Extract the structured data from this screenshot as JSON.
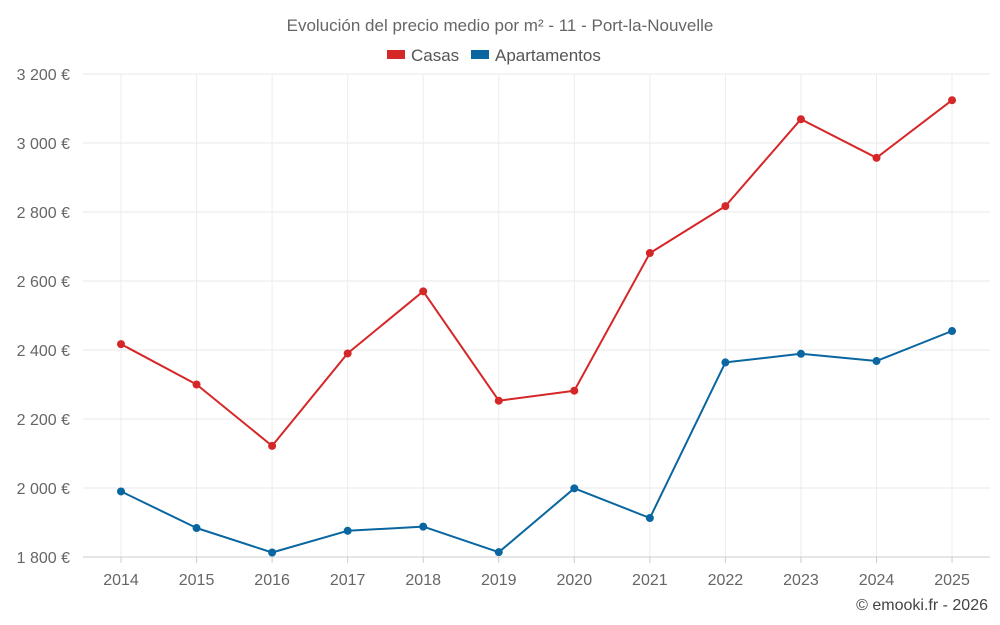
{
  "chart_data": {
    "type": "line",
    "title": "Evolución del precio medio por m² - 11 - Port-la-Nouvelle",
    "categories": [
      "2014",
      "2015",
      "2016",
      "2017",
      "2018",
      "2019",
      "2020",
      "2021",
      "2022",
      "2023",
      "2024",
      "2025"
    ],
    "series": [
      {
        "name": "Casas",
        "color": "#d62728",
        "values": [
          2417,
          2300,
          2122,
          2390,
          2570,
          2253,
          2282,
          2681,
          2817,
          3069,
          2957,
          3124
        ]
      },
      {
        "name": "Apartamentos",
        "color": "#0a66a0",
        "values": [
          1990,
          1884,
          1813,
          1876,
          1888,
          1814,
          1999,
          1913,
          2364,
          2389,
          2368,
          2455
        ]
      }
    ],
    "ylim": [
      1800,
      3200
    ],
    "yticks": [
      1800,
      2000,
      2200,
      2400,
      2600,
      2800,
      3000,
      3200
    ],
    "ytick_labels": [
      "1 800 €",
      "2 000 €",
      "2 200 €",
      "2 400 €",
      "2 600 €",
      "2 800 €",
      "3 000 €",
      "3 200 €"
    ],
    "grid": true,
    "legend_position": "top-center",
    "credit": "© emooki.fr - 2026"
  }
}
